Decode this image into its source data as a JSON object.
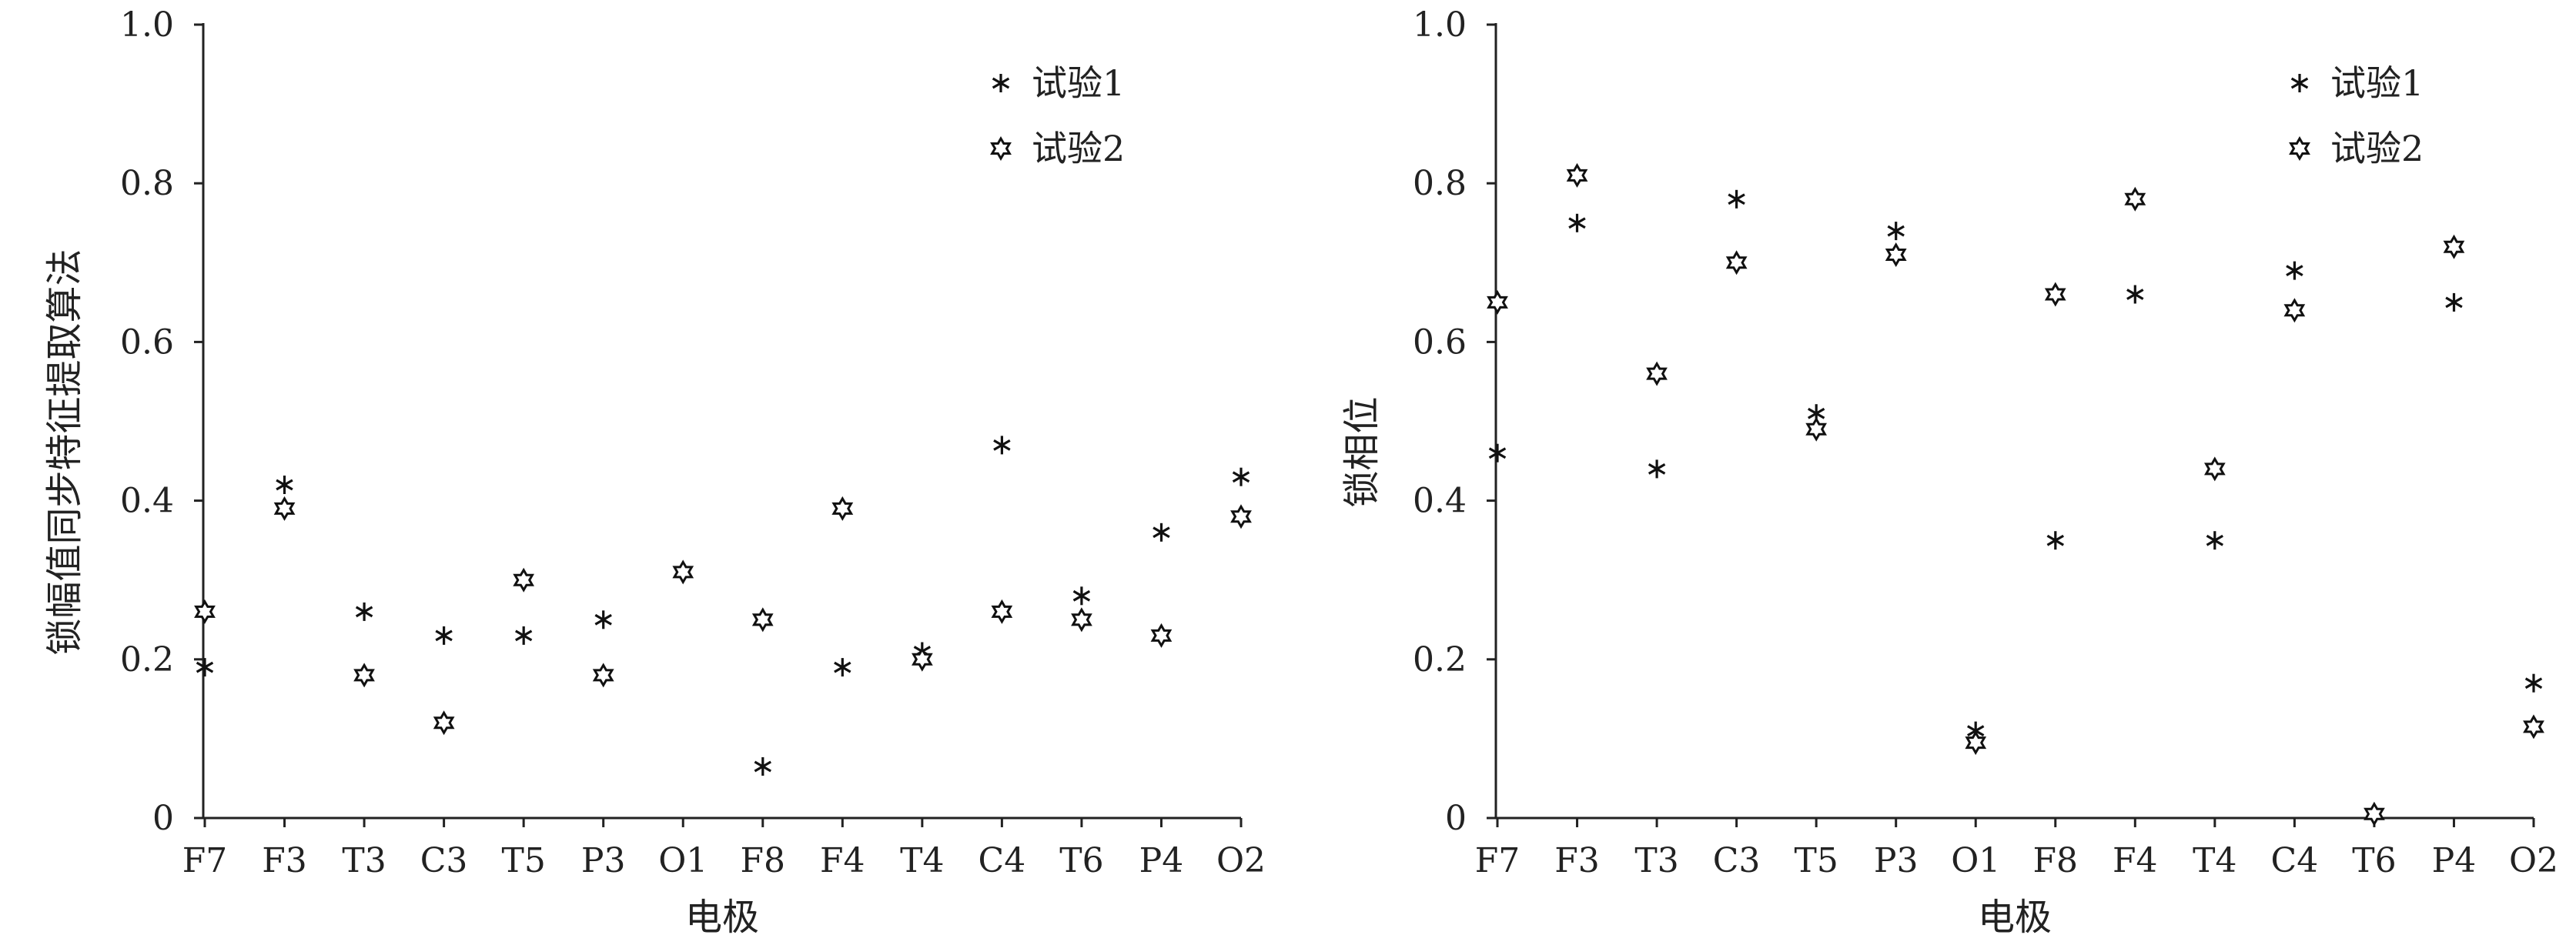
{
  "chart_data": [
    {
      "type": "scatter",
      "title": "",
      "xlabel": "电极",
      "ylabel": "锁幅值同步特征提取算法",
      "categories": [
        "F7",
        "F3",
        "T3",
        "C3",
        "T5",
        "P3",
        "O1",
        "F8",
        "F4",
        "T4",
        "C4",
        "T6",
        "P4",
        "O2"
      ],
      "ylim": [
        0,
        1.0
      ],
      "yticks": [
        "0",
        "0.2",
        "0.4",
        "0.6",
        "0.8",
        "1.0"
      ],
      "grid": false,
      "legend_position": "top-right",
      "series": [
        {
          "name": "试验1",
          "marker": "asterisk",
          "values": [
            0.19,
            0.42,
            0.26,
            0.23,
            0.23,
            0.25,
            0.31,
            0.065,
            0.19,
            0.21,
            0.47,
            0.28,
            0.36,
            0.43
          ]
        },
        {
          "name": "试验2",
          "marker": "star",
          "values": [
            0.26,
            0.39,
            0.18,
            0.12,
            0.3,
            0.18,
            0.31,
            0.25,
            0.39,
            0.2,
            0.26,
            0.25,
            0.23,
            0.38
          ]
        }
      ]
    },
    {
      "type": "scatter",
      "title": "",
      "xlabel": "电极",
      "ylabel": "锁相位",
      "categories": [
        "F7",
        "F3",
        "T3",
        "C3",
        "T5",
        "P3",
        "O1",
        "F8",
        "F4",
        "T4",
        "C4",
        "T6",
        "P4",
        "O2"
      ],
      "ylim": [
        0,
        1.0
      ],
      "yticks": [
        "0",
        "0.2",
        "0.4",
        "0.6",
        "0.8",
        "1.0"
      ],
      "grid": false,
      "legend_position": "top-right",
      "series": [
        {
          "name": "试验1",
          "marker": "asterisk",
          "values": [
            0.46,
            0.75,
            0.44,
            0.78,
            0.51,
            0.74,
            0.11,
            0.35,
            0.66,
            0.35,
            0.69,
            0.005,
            0.65,
            0.17
          ]
        },
        {
          "name": "试验2",
          "marker": "star",
          "values": [
            0.65,
            0.81,
            0.56,
            0.7,
            0.49,
            0.71,
            0.095,
            0.66,
            0.78,
            0.44,
            0.64,
            0.005,
            0.72,
            0.115
          ]
        }
      ]
    }
  ]
}
